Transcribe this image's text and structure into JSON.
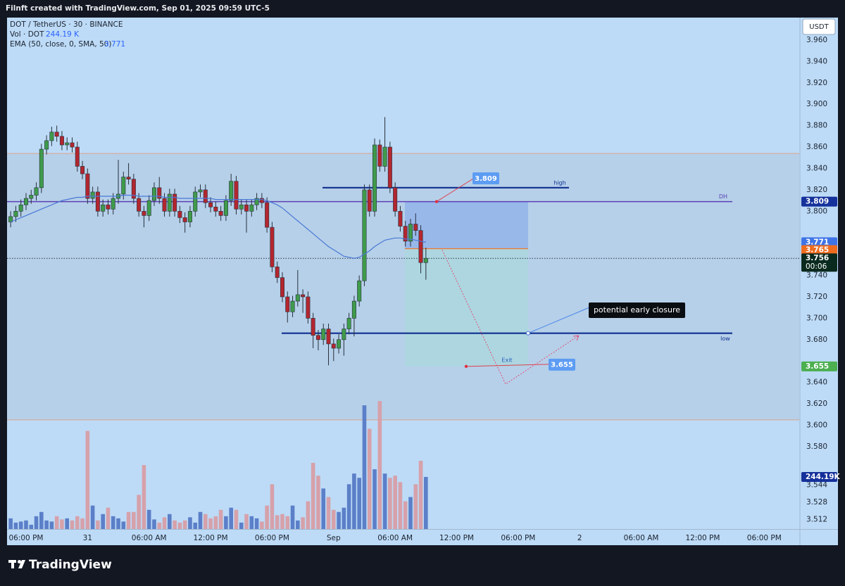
{
  "header": "Filnft created with TradingView.com, Sep 01, 2025 09:59 UTC-5",
  "footer": "TradingView",
  "chart_data": {
    "type": "candlestick",
    "title": "DOT / TetherUS · 30 · BINANCE",
    "currency": "USDT",
    "countdown": "00:06",
    "annotation": "potential early closure",
    "up_color": "#3f9b4b",
    "down_color": "#b3262f",
    "categories": [
      null,
      null,
      null,
      "06:00 PM",
      null,
      null,
      null,
      null,
      null,
      null,
      null,
      null,
      null,
      null,
      null,
      "31",
      null,
      null,
      null,
      null,
      null,
      null,
      null,
      null,
      null,
      null,
      null,
      "06:00 AM",
      null,
      null,
      null,
      null,
      null,
      null,
      null,
      null,
      null,
      null,
      null,
      "12:00 PM",
      null,
      null,
      null,
      null,
      null,
      null,
      null,
      null,
      null,
      null,
      null,
      "06:00 PM",
      null,
      null,
      null,
      null,
      null,
      null,
      null,
      null,
      null,
      null,
      null,
      "Sep",
      null,
      null,
      null,
      null,
      null,
      null,
      null,
      null,
      null,
      null,
      null,
      "06:00 AM",
      null,
      null,
      null,
      null,
      null,
      null,
      null,
      null,
      null,
      null,
      null,
      "12:00 PM",
      null,
      null,
      null,
      null,
      null,
      null,
      null,
      null,
      null,
      null,
      null,
      "06:00 PM",
      null,
      null,
      null,
      null,
      null,
      null,
      null,
      null,
      null,
      null,
      null,
      "2",
      null,
      null,
      null,
      null,
      null,
      null,
      null,
      null,
      null,
      null,
      null,
      "06:00 AM",
      null,
      null,
      null,
      null,
      null,
      null,
      null,
      null,
      null,
      null,
      null,
      "12:00 PM",
      null,
      null,
      null,
      null,
      null,
      null,
      null,
      null,
      null,
      null,
      null,
      "06:00 PM",
      null,
      null,
      null,
      null,
      null,
      null
    ],
    "open": [
      3.79,
      3.795,
      3.8,
      3.806,
      3.812,
      3.815,
      3.822,
      3.858,
      3.866,
      3.874,
      3.87,
      3.862,
      3.864,
      3.86,
      3.842,
      3.835,
      3.812,
      3.818,
      3.8,
      3.806,
      3.802,
      3.812,
      3.816,
      3.832,
      3.83,
      3.812,
      3.8,
      3.796,
      3.81,
      3.822,
      3.812,
      3.8,
      3.816,
      3.8,
      3.794,
      3.79,
      3.8,
      3.818,
      3.82,
      3.808,
      3.804,
      3.8,
      3.796,
      3.81,
      3.828,
      3.802,
      3.806,
      3.8,
      3.806,
      3.812,
      3.808,
      3.785,
      3.748,
      3.738,
      3.72,
      3.706,
      3.716,
      3.722,
      3.72,
      3.7,
      3.684,
      3.68,
      3.69,
      3.676,
      3.672,
      3.68,
      3.69,
      3.7,
      3.716,
      3.735,
      3.82,
      3.8,
      3.862,
      3.842,
      3.86,
      3.822,
      3.8,
      3.786,
      3.772,
      3.788,
      3.782,
      3.752,
      null,
      null,
      null,
      null,
      null,
      null,
      null,
      null,
      null,
      null,
      null,
      null,
      null,
      null,
      null,
      null,
      null,
      null,
      null,
      null,
      null,
      null,
      null,
      null,
      null,
      null,
      null,
      null,
      null,
      null,
      null,
      null,
      null,
      null,
      null,
      null,
      null,
      null,
      null,
      null,
      null,
      null,
      null,
      null,
      null,
      null,
      null,
      null,
      null,
      null,
      null,
      null,
      null,
      null,
      null,
      null,
      null,
      null,
      null,
      null,
      null,
      null,
      null,
      null,
      null,
      null,
      null,
      null,
      null,
      null,
      null,
      null
    ],
    "high": [
      3.8,
      3.805,
      3.811,
      3.817,
      3.82,
      3.827,
      3.863,
      3.871,
      3.879,
      3.88,
      3.875,
      3.869,
      3.869,
      3.865,
      3.847,
      3.84,
      3.823,
      3.823,
      3.811,
      3.811,
      3.817,
      3.848,
      3.837,
      3.845,
      3.835,
      3.817,
      3.805,
      3.815,
      3.827,
      3.832,
      3.817,
      3.821,
      3.821,
      3.805,
      3.799,
      3.805,
      3.823,
      3.825,
      3.825,
      3.813,
      3.809,
      3.805,
      3.815,
      3.835,
      3.833,
      3.811,
      3.811,
      3.811,
      3.817,
      3.817,
      3.813,
      3.79,
      3.753,
      3.743,
      3.725,
      3.721,
      3.745,
      3.727,
      3.725,
      3.705,
      3.689,
      3.695,
      3.695,
      3.681,
      3.685,
      3.695,
      3.705,
      3.721,
      3.74,
      3.825,
      3.825,
      3.868,
      3.867,
      3.888,
      3.865,
      3.827,
      3.805,
      3.791,
      3.793,
      3.798,
      3.787,
      3.766,
      null,
      null,
      null,
      null,
      null,
      null,
      null,
      null,
      null,
      null,
      null,
      null,
      null,
      null,
      null,
      null,
      null,
      null,
      null,
      null,
      null,
      null,
      null,
      null,
      null,
      null,
      null,
      null,
      null,
      null,
      null,
      null,
      null,
      null,
      null,
      null,
      null,
      null,
      null,
      null,
      null,
      null,
      null,
      null,
      null,
      null,
      null,
      null,
      null,
      null,
      null,
      null,
      null,
      null,
      null,
      null,
      null,
      null,
      null,
      null,
      null,
      null,
      null,
      null,
      null,
      null,
      null,
      null,
      null,
      null,
      null,
      null
    ],
    "low": [
      3.785,
      3.79,
      3.795,
      3.801,
      3.807,
      3.81,
      3.817,
      3.853,
      3.861,
      3.865,
      3.857,
      3.857,
      3.855,
      3.837,
      3.83,
      3.807,
      3.807,
      3.795,
      3.795,
      3.797,
      3.797,
      3.807,
      3.811,
      3.825,
      3.807,
      3.795,
      3.785,
      3.791,
      3.805,
      3.807,
      3.795,
      3.795,
      3.795,
      3.789,
      3.78,
      3.785,
      3.795,
      3.813,
      3.803,
      3.799,
      3.795,
      3.791,
      3.791,
      3.805,
      3.797,
      3.797,
      3.78,
      3.795,
      3.801,
      3.803,
      3.78,
      3.743,
      3.733,
      3.715,
      3.696,
      3.701,
      3.711,
      3.705,
      3.695,
      3.672,
      3.67,
      3.675,
      3.656,
      3.66,
      3.667,
      3.665,
      3.685,
      3.683,
      3.711,
      3.73,
      3.795,
      3.795,
      3.837,
      3.837,
      3.817,
      3.795,
      3.781,
      3.767,
      3.767,
      3.777,
      3.742,
      3.736,
      null,
      null,
      null,
      null,
      null,
      null,
      null,
      null,
      null,
      null,
      null,
      null,
      null,
      null,
      null,
      null,
      null,
      null,
      null,
      null,
      null,
      null,
      null,
      null,
      null,
      null,
      null,
      null,
      null,
      null,
      null,
      null,
      null,
      null,
      null,
      null,
      null,
      null,
      null,
      null,
      null,
      null,
      null,
      null,
      null,
      null,
      null,
      null,
      null,
      null,
      null,
      null,
      null,
      null,
      null,
      null,
      null,
      null,
      null,
      null,
      null,
      null,
      null,
      null,
      null,
      null,
      null,
      null,
      null,
      null,
      null,
      null
    ],
    "close": [
      3.795,
      3.8,
      3.806,
      3.812,
      3.815,
      3.822,
      3.858,
      3.866,
      3.874,
      3.87,
      3.862,
      3.864,
      3.86,
      3.842,
      3.835,
      3.812,
      3.818,
      3.8,
      3.806,
      3.802,
      3.812,
      3.816,
      3.832,
      3.83,
      3.812,
      3.8,
      3.796,
      3.81,
      3.822,
      3.812,
      3.8,
      3.816,
      3.8,
      3.794,
      3.79,
      3.8,
      3.818,
      3.82,
      3.808,
      3.804,
      3.8,
      3.796,
      3.81,
      3.828,
      3.802,
      3.806,
      3.8,
      3.806,
      3.812,
      3.808,
      3.785,
      3.748,
      3.738,
      3.72,
      3.706,
      3.716,
      3.722,
      3.72,
      3.7,
      3.684,
      3.68,
      3.69,
      3.676,
      3.672,
      3.68,
      3.69,
      3.7,
      3.716,
      3.735,
      3.82,
      3.8,
      3.862,
      3.842,
      3.86,
      3.822,
      3.8,
      3.786,
      3.772,
      3.788,
      3.782,
      3.752,
      3.756,
      null,
      null,
      null,
      null,
      null,
      null,
      null,
      null,
      null,
      null,
      null,
      null,
      null,
      null,
      null,
      null,
      null,
      null,
      null,
      null,
      null,
      null,
      null,
      null,
      null,
      null,
      null,
      null,
      null,
      null,
      null,
      null,
      null,
      null,
      null,
      null,
      null,
      null,
      null,
      null,
      null,
      null,
      null,
      null,
      null,
      null,
      null,
      null,
      null,
      null,
      null,
      null,
      null,
      null,
      null,
      null,
      null,
      null,
      null,
      null,
      null,
      null,
      null,
      null,
      null,
      null,
      null,
      null,
      null,
      null,
      null,
      null
    ],
    "volume": {
      "name": "Vol · DOT",
      "legend_label": "244.19 K",
      "axis_label": "244.19K",
      "up_color": "#5b7fc8",
      "down_color": "#d6a1aa",
      "ylim": [
        0,
        620
      ],
      "values": [
        50,
        30,
        35,
        40,
        20,
        60,
        80,
        40,
        35,
        60,
        45,
        50,
        40,
        60,
        50,
        460,
        110,
        40,
        70,
        100,
        60,
        50,
        35,
        80,
        80,
        160,
        300,
        90,
        45,
        30,
        55,
        70,
        40,
        30,
        40,
        55,
        30,
        80,
        70,
        50,
        60,
        90,
        60,
        100,
        90,
        30,
        70,
        60,
        50,
        35,
        110,
        210,
        65,
        70,
        60,
        110,
        40,
        55,
        130,
        310,
        250,
        190,
        150,
        90,
        80,
        100,
        210,
        260,
        240,
        580,
        470,
        280,
        600,
        260,
        240,
        250,
        220,
        130,
        150,
        210,
        320,
        244.19,
        null,
        null,
        null,
        null,
        null,
        null,
        null,
        null,
        null,
        null,
        null,
        null,
        null,
        null,
        null,
        null,
        null,
        null,
        null,
        null,
        null,
        null,
        null,
        null,
        null,
        null,
        null,
        null,
        null,
        null,
        null,
        null,
        null,
        null,
        null,
        null,
        null,
        null,
        null,
        null,
        null,
        null,
        null,
        null,
        null,
        null,
        null,
        null,
        null,
        null,
        null,
        null,
        null,
        null,
        null,
        null,
        null,
        null,
        null,
        null,
        null,
        null,
        null,
        null,
        null,
        null,
        null,
        null,
        null,
        null,
        null,
        null
      ]
    },
    "ema": {
      "name": "EMA (50, close, 0, SMA, 50)",
      "color": "#4a78d6",
      "values": [
        3.79,
        3.792,
        3.794,
        3.796,
        3.798,
        3.8,
        3.802,
        3.804,
        3.806,
        3.808,
        3.81,
        3.811,
        3.812,
        3.813,
        3.813,
        3.814,
        3.814,
        3.814,
        3.814,
        3.814,
        3.814,
        3.814,
        3.815,
        3.815,
        3.815,
        3.814,
        3.814,
        3.814,
        3.814,
        3.814,
        3.813,
        3.813,
        3.813,
        3.812,
        3.812,
        3.812,
        3.812,
        3.812,
        3.812,
        3.812,
        3.811,
        3.811,
        3.811,
        3.811,
        3.811,
        3.811,
        3.811,
        3.811,
        3.811,
        3.811,
        3.81,
        3.808,
        3.806,
        3.803,
        3.799,
        3.795,
        3.791,
        3.787,
        3.783,
        3.779,
        3.775,
        3.771,
        3.767,
        3.764,
        3.761,
        3.758,
        3.757,
        3.756,
        3.757,
        3.76,
        3.763,
        3.767,
        3.77,
        3.773,
        3.774,
        3.775,
        3.775,
        3.774,
        3.774,
        3.773,
        3.772,
        3.771,
        null,
        null,
        null,
        null,
        null,
        null,
        null,
        null,
        null,
        null,
        null,
        null,
        null,
        null,
        null,
        null,
        null,
        null,
        null,
        null,
        null,
        null,
        null,
        null,
        null,
        null,
        null,
        null,
        null,
        null,
        null,
        null,
        null,
        null,
        null,
        null,
        null,
        null,
        null,
        null,
        null,
        null,
        null,
        null,
        null,
        null,
        null,
        null,
        null,
        null,
        null,
        null,
        null,
        null,
        null,
        null,
        null,
        null,
        null,
        null,
        null,
        null,
        null,
        null,
        null,
        null,
        null,
        null,
        null,
        null,
        null,
        null
      ]
    },
    "ylim": [
      3.503,
      3.981
    ],
    "yticks": [
      {
        "value": 3.96,
        "label": "3.960"
      },
      {
        "value": 3.94,
        "label": "3.940"
      },
      {
        "value": 3.92,
        "label": "3.920"
      },
      {
        "value": 3.9,
        "label": "3.900"
      },
      {
        "value": 3.88,
        "label": "3.880"
      },
      {
        "value": 3.86,
        "label": "3.860"
      },
      {
        "value": 3.84,
        "label": "3.840"
      },
      {
        "value": 3.82,
        "label": "3.820"
      },
      {
        "value": 3.8,
        "label": "3.800"
      },
      {
        "value": 3.74,
        "label": "3.740"
      },
      {
        "value": 3.72,
        "label": "3.720"
      },
      {
        "value": 3.7,
        "label": "3.700"
      },
      {
        "value": 3.68,
        "label": "3.680"
      },
      {
        "value": 3.64,
        "label": "3.640"
      },
      {
        "value": 3.62,
        "label": "3.620"
      },
      {
        "value": 3.6,
        "label": "3.600"
      },
      {
        "value": 3.58,
        "label": "3.580"
      },
      3.544,
      3.528,
      3.512
    ],
    "shaded_range": [
      3.605,
      3.854
    ],
    "levels": [
      {
        "label": "DH",
        "value": 3.809,
        "color": "#5b3fb5"
      },
      {
        "label": "high",
        "value": 3.822,
        "color": "#0f2f8f"
      },
      {
        "label": "low",
        "value": 3.686,
        "color": "#0f2f8f"
      }
    ],
    "position": {
      "stop": 3.809,
      "entry": 3.765,
      "target": 3.655,
      "target_label": "Exit"
    }
  }
}
